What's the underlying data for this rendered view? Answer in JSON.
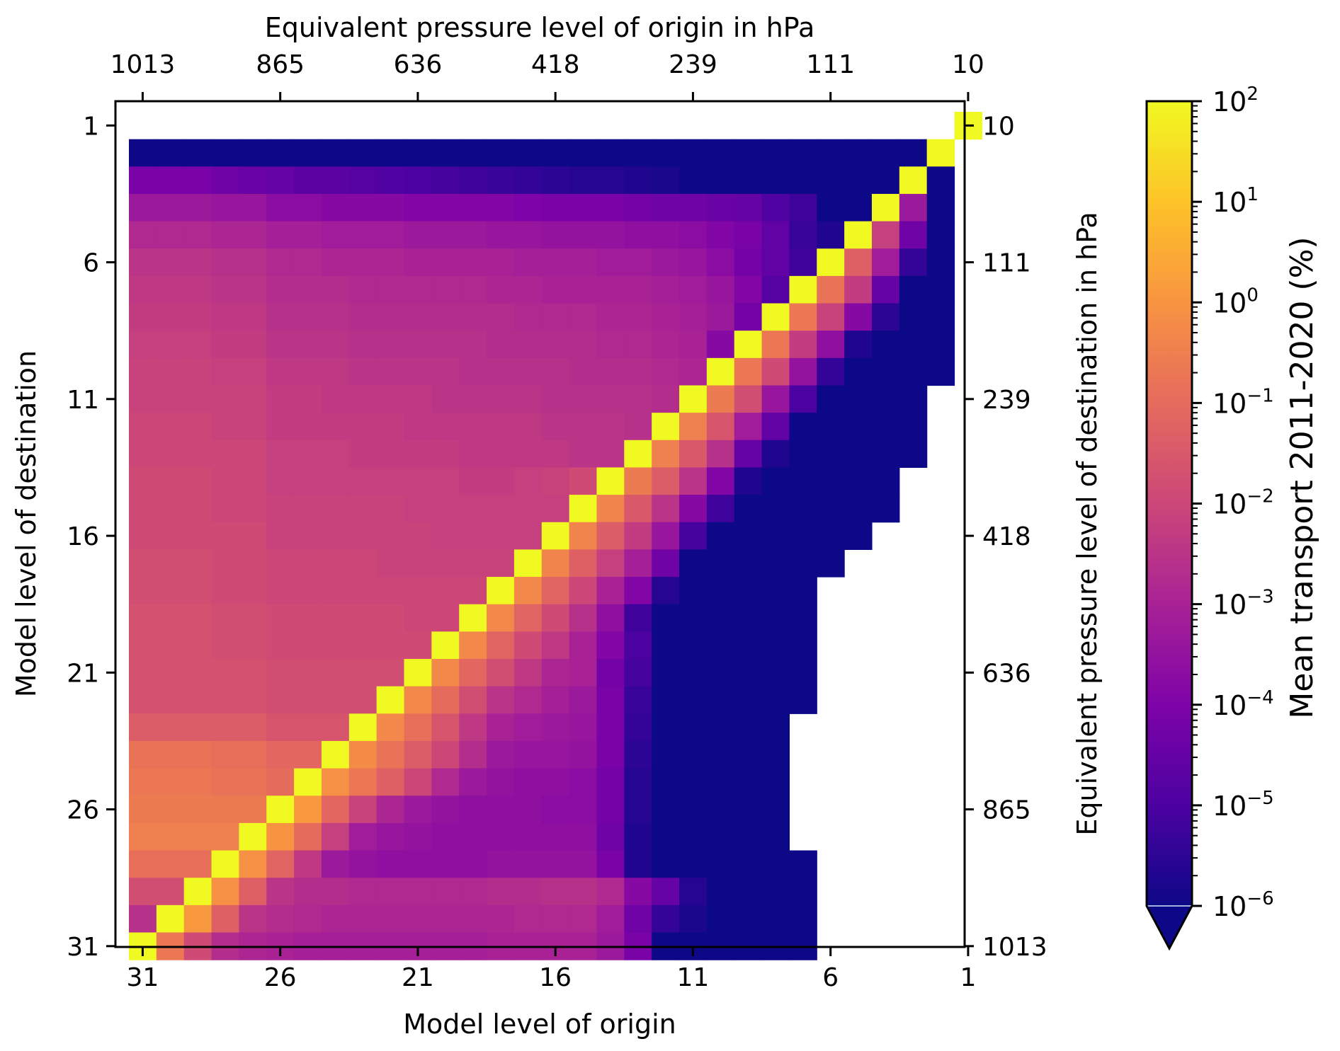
{
  "chart_data": {
    "type": "heatmap",
    "title": "",
    "xlabel": "Model level of origin",
    "ylabel": "Model level of destination",
    "x2label": "Equivalent pressure level of origin in hPa",
    "y2label": "Equivalent pressure level of destination in hPa",
    "colorbar_label": "Mean transport 2011-2020 (%)",
    "x_range": [
      31,
      1
    ],
    "y_range": [
      1,
      31
    ],
    "x_ticks": [
      "31",
      "26",
      "21",
      "16",
      "11",
      "6",
      "1"
    ],
    "y_ticks": [
      "1",
      "6",
      "11",
      "16",
      "21",
      "26",
      "31"
    ],
    "pressure_ticks": [
      "1013",
      "865",
      "636",
      "418",
      "239",
      "111",
      "10"
    ],
    "colorbar": {
      "scale": "log",
      "colormap": "plasma",
      "range": [
        1e-06,
        100
      ],
      "extend": "min",
      "ticks": [
        {
          "base": "10",
          "exp": "2"
        },
        {
          "base": "10",
          "exp": "1"
        },
        {
          "base": "10",
          "exp": "0"
        },
        {
          "base": "10",
          "exp": "−1"
        },
        {
          "base": "10",
          "exp": "−2"
        },
        {
          "base": "10",
          "exp": "−3"
        },
        {
          "base": "10",
          "exp": "−4"
        },
        {
          "base": "10",
          "exp": "−5"
        },
        {
          "base": "10",
          "exp": "−6"
        }
      ]
    },
    "matrix_note": "values are log10 of mean transport (%); rows = destination level 1..31 (top to bottom), columns = origin level 31..1 (left to right); null = no data",
    "log10_values": [
      [
        null,
        null,
        null,
        null,
        null,
        null,
        null,
        null,
        null,
        null,
        null,
        null,
        null,
        null,
        null,
        null,
        null,
        null,
        null,
        null,
        null,
        null,
        null,
        null,
        null,
        null,
        null,
        null,
        null,
        null,
        2
      ],
      [
        -6,
        -6,
        -6,
        -6,
        -6,
        -6,
        -6,
        -6,
        -6,
        -6,
        -6,
        -6,
        -6,
        -6,
        -6,
        -6,
        -6,
        -6,
        -6,
        -6,
        -6,
        -6,
        -6,
        -6,
        -6,
        -6,
        -6,
        -6,
        -6,
        2,
        null
      ],
      [
        -4.1,
        -4.1,
        -4.1,
        -4.3,
        -4.4,
        -4.5,
        -4.7,
        -4.7,
        -4.8,
        -4.9,
        -5,
        -5.1,
        -5.2,
        -5.3,
        -5.4,
        -5.5,
        -5.6,
        -5.6,
        -5.7,
        -5.8,
        -6,
        -6,
        -6,
        -6,
        -6,
        -6,
        -6,
        -6,
        2,
        -6,
        null
      ],
      [
        -3.3,
        -3.3,
        -3.3,
        -3.4,
        -3.4,
        -3.7,
        -3.7,
        -3.8,
        -3.8,
        -3.8,
        -3.9,
        -3.9,
        -3.9,
        -3.9,
        -4,
        -4.1,
        -4.1,
        -4.1,
        -4.2,
        -4.3,
        -4.3,
        -4.4,
        -4.5,
        -4.9,
        -5.2,
        -6,
        -6,
        2,
        -3.3,
        -6,
        null
      ],
      [
        -2.8,
        -2.8,
        -2.8,
        -2.9,
        -2.9,
        -3.1,
        -3.1,
        -3.2,
        -3.2,
        -3.2,
        -3.3,
        -3.3,
        -3.3,
        -3.4,
        -3.4,
        -3.5,
        -3.5,
        -3.5,
        -3.6,
        -3.6,
        -3.7,
        -3.9,
        -4.1,
        -4.6,
        -5.3,
        -5.7,
        2,
        -2.2,
        -4.3,
        -6,
        null
      ],
      [
        -2.5,
        -2.5,
        -2.5,
        -2.6,
        -2.6,
        -2.8,
        -2.8,
        -2.9,
        -2.9,
        -2.9,
        -3,
        -3,
        -3,
        -3,
        -3.1,
        -3.1,
        -3.1,
        -3.2,
        -3.2,
        -3.3,
        -3.4,
        -3.7,
        -4.2,
        -4.6,
        -5.2,
        2,
        -1.3,
        -3.2,
        -5.4,
        -6,
        null
      ],
      [
        -2.4,
        -2.4,
        -2.4,
        -2.5,
        -2.5,
        -2.7,
        -2.7,
        -2.7,
        -2.8,
        -2.8,
        -2.8,
        -2.8,
        -2.8,
        -2.9,
        -2.9,
        -3,
        -3,
        -3,
        -3,
        -3.1,
        -3.2,
        -3.4,
        -3.9,
        -4.8,
        2,
        -0.8,
        -2.3,
        -4.5,
        -6,
        -6,
        null
      ],
      [
        -2.3,
        -2.3,
        -2.3,
        -2.4,
        -2.4,
        -2.6,
        -2.6,
        -2.6,
        -2.7,
        -2.7,
        -2.7,
        -2.7,
        -2.7,
        -2.7,
        -2.8,
        -2.8,
        -2.8,
        -2.9,
        -2.9,
        -3,
        -3.1,
        -3.3,
        -4.2,
        2,
        -0.7,
        -2.1,
        -3.8,
        -5.5,
        -6,
        -6,
        null
      ],
      [
        -2.2,
        -2.2,
        -2.2,
        -2.3,
        -2.3,
        -2.5,
        -2.5,
        -2.5,
        -2.6,
        -2.6,
        -2.6,
        -2.6,
        -2.6,
        -2.7,
        -2.7,
        -2.7,
        -2.7,
        -2.8,
        -2.8,
        -2.9,
        -3,
        -3.8,
        2,
        -0.7,
        -2.3,
        -3.6,
        -5.7,
        -6,
        -6,
        -6,
        null
      ],
      [
        -2.1,
        -2.1,
        -2.1,
        -2.2,
        -2.2,
        -2.4,
        -2.4,
        -2.4,
        -2.5,
        -2.5,
        -2.5,
        -2.5,
        -2.6,
        -2.6,
        -2.6,
        -2.6,
        -2.7,
        -2.7,
        -2.7,
        -2.8,
        -2.9,
        2,
        -0.7,
        -1.9,
        -3.5,
        -5.4,
        -6,
        -6,
        -6,
        -6,
        null
      ],
      [
        -2.1,
        -2.1,
        -2.1,
        -2.1,
        -2.1,
        -2.3,
        -2.3,
        -2.4,
        -2.4,
        -2.4,
        -2.4,
        -2.5,
        -2.5,
        -2.5,
        -2.5,
        -2.6,
        -2.6,
        -2.6,
        -2.6,
        -2.7,
        2,
        -0.6,
        -1.8,
        -3.4,
        -5,
        -6,
        -6,
        -6,
        -6,
        null,
        null
      ],
      [
        -2,
        -2,
        -2,
        -2.1,
        -2.1,
        -2.3,
        -2.3,
        -2.3,
        -2.3,
        -2.3,
        -2.4,
        -2.4,
        -2.4,
        -2.4,
        -2.4,
        -2.5,
        -2.5,
        -2.5,
        -2.6,
        2,
        -0.5,
        -1.6,
        -3.2,
        -4.6,
        -6,
        -6,
        -6,
        -6,
        -6,
        null,
        null
      ],
      [
        -2,
        -2,
        -2,
        -2,
        -2,
        -2.2,
        -2.2,
        -2.2,
        -2.3,
        -2.3,
        -2.3,
        -2.3,
        -2.4,
        -2.4,
        -2.4,
        -2.4,
        -2.5,
        -2.5,
        2,
        -0.5,
        -1.5,
        -2.6,
        -4.5,
        -5.7,
        -6,
        -6,
        -6,
        -6,
        -6,
        null,
        null
      ],
      [
        -1.9,
        -1.9,
        -1.9,
        -2,
        -2,
        -2.2,
        -2.2,
        -2.2,
        -2.2,
        -2.2,
        -2.2,
        -2.2,
        -2.3,
        -2.3,
        -2.2,
        -2.1,
        -1.9,
        2,
        -0.6,
        -1.4,
        -2.5,
        -3.9,
        -5.7,
        -6,
        -6,
        -6,
        -6,
        -6,
        null,
        null,
        null
      ],
      [
        -1.9,
        -1.9,
        -1.9,
        -2,
        -2,
        -2.1,
        -2.1,
        -2.1,
        -2.1,
        -2.1,
        -2.2,
        -2.2,
        -2.2,
        -2.2,
        -2.2,
        -2.2,
        2,
        -0.4,
        -1.5,
        -2.5,
        -3.8,
        -5.2,
        -6,
        -6,
        -6,
        -6,
        -6,
        -6,
        null,
        null,
        null
      ],
      [
        -1.9,
        -1.9,
        -1.9,
        -1.9,
        -1.9,
        -2.1,
        -2.1,
        -2.1,
        -2.1,
        -2.1,
        -2.1,
        -2.2,
        -2.2,
        -2.2,
        -2.2,
        2,
        -0.4,
        -1.4,
        -2.3,
        -3.4,
        -5.1,
        -6,
        -6,
        -6,
        -6,
        -6,
        -6,
        null,
        null,
        null,
        null
      ],
      [
        -1.8,
        -1.8,
        -1.8,
        -1.9,
        -1.9,
        -2,
        -2,
        -2,
        -2,
        -2.1,
        -2.1,
        -2.1,
        -2.1,
        -2.1,
        2,
        -0.4,
        -1.3,
        -2.2,
        -3.1,
        -4.3,
        -6,
        -6,
        -6,
        -6,
        -6,
        -6,
        null,
        null,
        null,
        null,
        null
      ],
      [
        -1.8,
        -1.8,
        -1.8,
        -1.9,
        -1.9,
        -2,
        -2,
        -2,
        -2,
        -2,
        -2,
        -2,
        -2,
        2,
        -0.3,
        -1.2,
        -2,
        -3,
        -3.9,
        -5.6,
        -6,
        -6,
        -6,
        -6,
        -6,
        null,
        null,
        null,
        null,
        null,
        null
      ],
      [
        -1.7,
        -1.7,
        -1.7,
        -1.8,
        -1.8,
        -1.9,
        -1.9,
        -1.9,
        -1.9,
        -1.9,
        -2,
        -2,
        2,
        -0.3,
        -1.2,
        -1.9,
        -2.6,
        -3.6,
        -5.2,
        -6,
        -6,
        -6,
        -6,
        -6,
        -6,
        null,
        null,
        null,
        null,
        null,
        null
      ],
      [
        -1.7,
        -1.7,
        -1.7,
        -1.8,
        -1.8,
        -1.9,
        -1.9,
        -1.9,
        -1.9,
        -1.9,
        -1.9,
        2,
        -0.3,
        -1.2,
        -1.9,
        -2.4,
        -3,
        -3.9,
        -5,
        -6,
        -6,
        -6,
        -6,
        -6,
        -6,
        null,
        null,
        null,
        null,
        null,
        null
      ],
      [
        -1.7,
        -1.7,
        -1.7,
        -1.7,
        -1.7,
        -1.8,
        -1.8,
        -1.8,
        -1.8,
        -1.8,
        2,
        -0.3,
        -1.1,
        -1.8,
        -2.4,
        -2.9,
        -3,
        -4.2,
        -5.1,
        -6,
        -6,
        -6,
        -6,
        -6,
        -6,
        null,
        null,
        null,
        null,
        null,
        null
      ],
      [
        -1.7,
        -1.7,
        -1.7,
        -1.7,
        -1.7,
        -1.8,
        -1.8,
        -1.8,
        -1.8,
        2,
        -0.3,
        -1,
        -1.8,
        -2.5,
        -2.8,
        -3.1,
        -3.3,
        -4.1,
        -5.3,
        -6,
        -6,
        -6,
        -6,
        -6,
        -6,
        null,
        null,
        null,
        null,
        null,
        null
      ],
      [
        -1.4,
        -1.4,
        -1.4,
        -1.4,
        -1.4,
        -1.6,
        -1.6,
        -1.6,
        2,
        -0.3,
        -0.9,
        -1.6,
        -2.4,
        -3,
        -3.2,
        -3.3,
        -3.4,
        -4.1,
        -5.4,
        -6,
        -6,
        -6,
        -6,
        -6,
        null,
        null,
        null,
        null,
        null,
        null,
        null
      ],
      [
        -0.8,
        -0.8,
        -0.8,
        -0.9,
        -0.9,
        -1.1,
        -1.1,
        2,
        -0.2,
        -0.8,
        -1.4,
        -2,
        -2.7,
        -3.3,
        -3.4,
        -3.4,
        -3.5,
        -4.1,
        -5.5,
        -6,
        -6,
        -6,
        -6,
        -6,
        null,
        null,
        null,
        null,
        null,
        null,
        null
      ],
      [
        -0.7,
        -0.7,
        -0.7,
        -0.8,
        -0.8,
        -1,
        2,
        -0.1,
        -0.7,
        -1.3,
        -2,
        -2.8,
        -3.3,
        -3.5,
        -3.6,
        -3.6,
        -3.7,
        -4.2,
        -5.6,
        -6,
        -6,
        -6,
        -6,
        -6,
        null,
        null,
        null,
        null,
        null,
        null,
        null
      ],
      [
        -0.6,
        -0.6,
        -0.6,
        -0.6,
        -0.6,
        2,
        0.1,
        -1.1,
        -2.1,
        -2.9,
        -3.3,
        -3.5,
        -3.6,
        -3.6,
        -3.6,
        -3.7,
        -3.7,
        -4.2,
        -5.6,
        -6,
        -6,
        -6,
        -6,
        -6,
        null,
        null,
        null,
        null,
        null,
        null,
        null
      ],
      [
        -0.5,
        -0.5,
        -0.5,
        -0.5,
        2,
        0,
        -1,
        -2.2,
        -3.2,
        -3.4,
        -3.5,
        -3.6,
        -3.6,
        -3.6,
        -3.6,
        -3.6,
        -3.6,
        -4.3,
        -5.7,
        -6,
        -6,
        -6,
        -6,
        -6,
        null,
        null,
        null,
        null,
        null,
        null,
        null
      ],
      [
        -0.9,
        -0.9,
        -0.9,
        2,
        -0.1,
        -1.2,
        -2.4,
        -3.3,
        -3.5,
        -3.6,
        -3.6,
        -3.6,
        -3.6,
        -3.5,
        -3.5,
        -3.5,
        -3.5,
        -4.1,
        -5.7,
        -6,
        -6,
        -6,
        -6,
        -6,
        -6,
        null,
        null,
        null,
        null,
        null,
        null
      ],
      [
        -1.8,
        -1.8,
        2,
        -0.1,
        -1.3,
        -2.5,
        -2.7,
        -2.7,
        -2.8,
        -2.8,
        -2.8,
        -2.8,
        -2.8,
        -2.7,
        -2.7,
        -2.6,
        -2.6,
        -2.8,
        -3.8,
        -4.5,
        -5.6,
        -6,
        -6,
        -6,
        -6,
        null,
        null,
        null,
        null,
        null,
        null
      ],
      [
        -2.6,
        2,
        0.1,
        -1.3,
        -2.5,
        -2.7,
        -2.8,
        -2.9,
        -2.9,
        -2.9,
        -2.9,
        -2.9,
        -2.9,
        -2.9,
        -2.8,
        -2.8,
        -2.8,
        -3.2,
        -4.3,
        -5.4,
        -5.8,
        -6,
        -6,
        -6,
        -6,
        null,
        null,
        null,
        null,
        null,
        null
      ],
      [
        2,
        -0.7,
        -1.9,
        -2.7,
        -2.9,
        -3,
        -3.1,
        -3.1,
        -3.1,
        -3.1,
        -3.1,
        -3.1,
        -3.1,
        -3.0,
        -3.0,
        -3.0,
        -3.0,
        -3.3,
        -4.1,
        -6,
        -6,
        -6,
        -6,
        -6,
        -6,
        null,
        null,
        null,
        null,
        null,
        null
      ]
    ]
  }
}
